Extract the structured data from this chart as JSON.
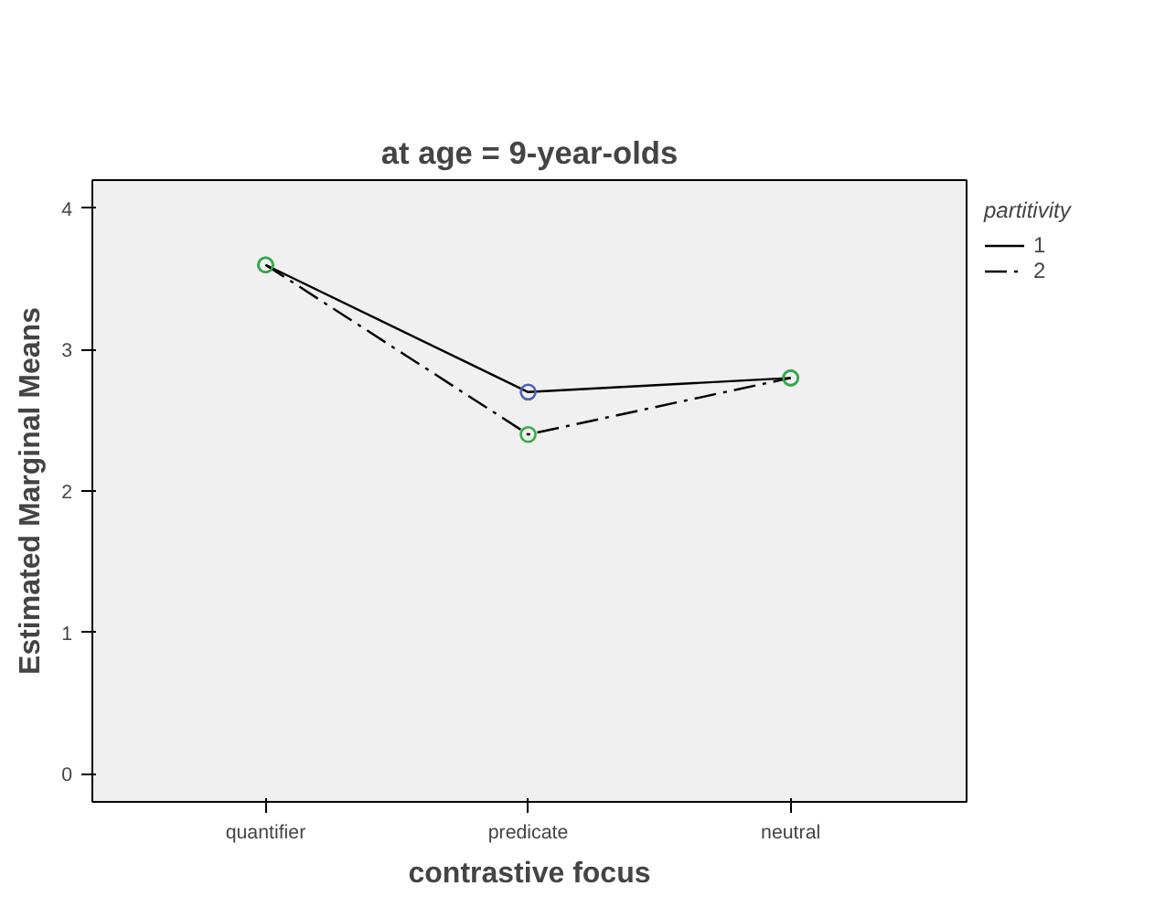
{
  "chart_data": {
    "type": "line",
    "title": "at age = 9-year-olds",
    "xlabel": "contrastive focus",
    "ylabel": "Estimated Marginal Means",
    "legend_title": "partitivity",
    "categories": [
      "quantifier",
      "predicate",
      "neutral"
    ],
    "series": [
      {
        "name": "1",
        "color": "#5060b0",
        "values": [
          3.6,
          2.7,
          2.8
        ],
        "line_style": "solid"
      },
      {
        "name": "2",
        "color": "#30b040",
        "values": [
          3.6,
          2.4,
          2.8
        ],
        "line_style": "dashed"
      }
    ],
    "ylim": [
      -0.2,
      4.2
    ],
    "yticks": [
      0,
      1,
      2,
      3,
      4
    ],
    "grid": false,
    "legend": "top right",
    "marker": "circle"
  }
}
